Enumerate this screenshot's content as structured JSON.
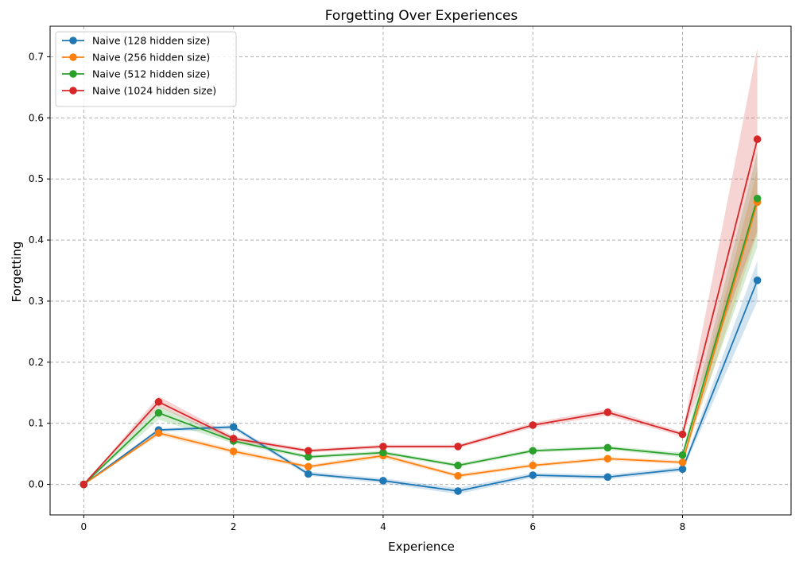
{
  "chart_data": {
    "type": "line",
    "title": "Forgetting Over Experiences",
    "xlabel": "Experience",
    "ylabel": "Forgetting",
    "x": [
      0,
      1,
      2,
      3,
      4,
      5,
      6,
      7,
      8,
      9
    ],
    "xlim": [
      -0.45,
      9.45
    ],
    "ylim": [
      -0.05,
      0.75
    ],
    "xticks": [
      0,
      2,
      4,
      6,
      8
    ],
    "yticks": [
      0.0,
      0.1,
      0.2,
      0.3,
      0.4,
      0.5,
      0.6,
      0.7
    ],
    "xtick_labels": [
      "0",
      "2",
      "4",
      "6",
      "8"
    ],
    "ytick_labels": [
      "0.0",
      "0.1",
      "0.2",
      "0.3",
      "0.4",
      "0.5",
      "0.6",
      "0.7"
    ],
    "grid": true,
    "legend_position": "top-left",
    "series": [
      {
        "name": "Naive (128 hidden size)",
        "color": "#1f77b4",
        "values": [
          0.0,
          0.089,
          0.094,
          0.017,
          0.006,
          -0.011,
          0.015,
          0.012,
          0.025,
          0.334
        ],
        "lower": [
          0.0,
          0.086,
          0.09,
          0.014,
          0.002,
          -0.016,
          0.011,
          0.008,
          0.021,
          0.3
        ],
        "upper": [
          0.0,
          0.092,
          0.097,
          0.021,
          0.01,
          -0.006,
          0.019,
          0.016,
          0.029,
          0.366
        ]
      },
      {
        "name": "Naive (256 hidden size)",
        "color": "#ff7f0e",
        "values": [
          0.0,
          0.084,
          0.054,
          0.029,
          0.047,
          0.014,
          0.031,
          0.042,
          0.036,
          0.462
        ],
        "lower": [
          0.0,
          0.08,
          0.05,
          0.026,
          0.043,
          0.011,
          0.028,
          0.039,
          0.033,
          0.41
        ],
        "upper": [
          0.0,
          0.088,
          0.058,
          0.032,
          0.051,
          0.017,
          0.034,
          0.045,
          0.039,
          0.515
        ]
      },
      {
        "name": "Naive (512 hidden size)",
        "color": "#2ca02c",
        "values": [
          0.0,
          0.117,
          0.071,
          0.045,
          0.052,
          0.031,
          0.055,
          0.06,
          0.048,
          0.468
        ],
        "lower": [
          0.0,
          0.106,
          0.067,
          0.042,
          0.049,
          0.028,
          0.052,
          0.057,
          0.044,
          0.39
        ],
        "upper": [
          0.0,
          0.128,
          0.075,
          0.048,
          0.055,
          0.034,
          0.058,
          0.063,
          0.052,
          0.545
        ]
      },
      {
        "name": "Naive (1024 hidden size)",
        "color": "#d62728",
        "values": [
          0.0,
          0.135,
          0.075,
          0.055,
          0.062,
          0.062,
          0.097,
          0.118,
          0.082,
          0.565
        ],
        "lower": [
          0.0,
          0.127,
          0.071,
          0.052,
          0.059,
          0.059,
          0.093,
          0.113,
          0.078,
          0.415
        ],
        "upper": [
          0.0,
          0.144,
          0.079,
          0.058,
          0.065,
          0.065,
          0.101,
          0.123,
          0.086,
          0.715
        ]
      }
    ]
  }
}
